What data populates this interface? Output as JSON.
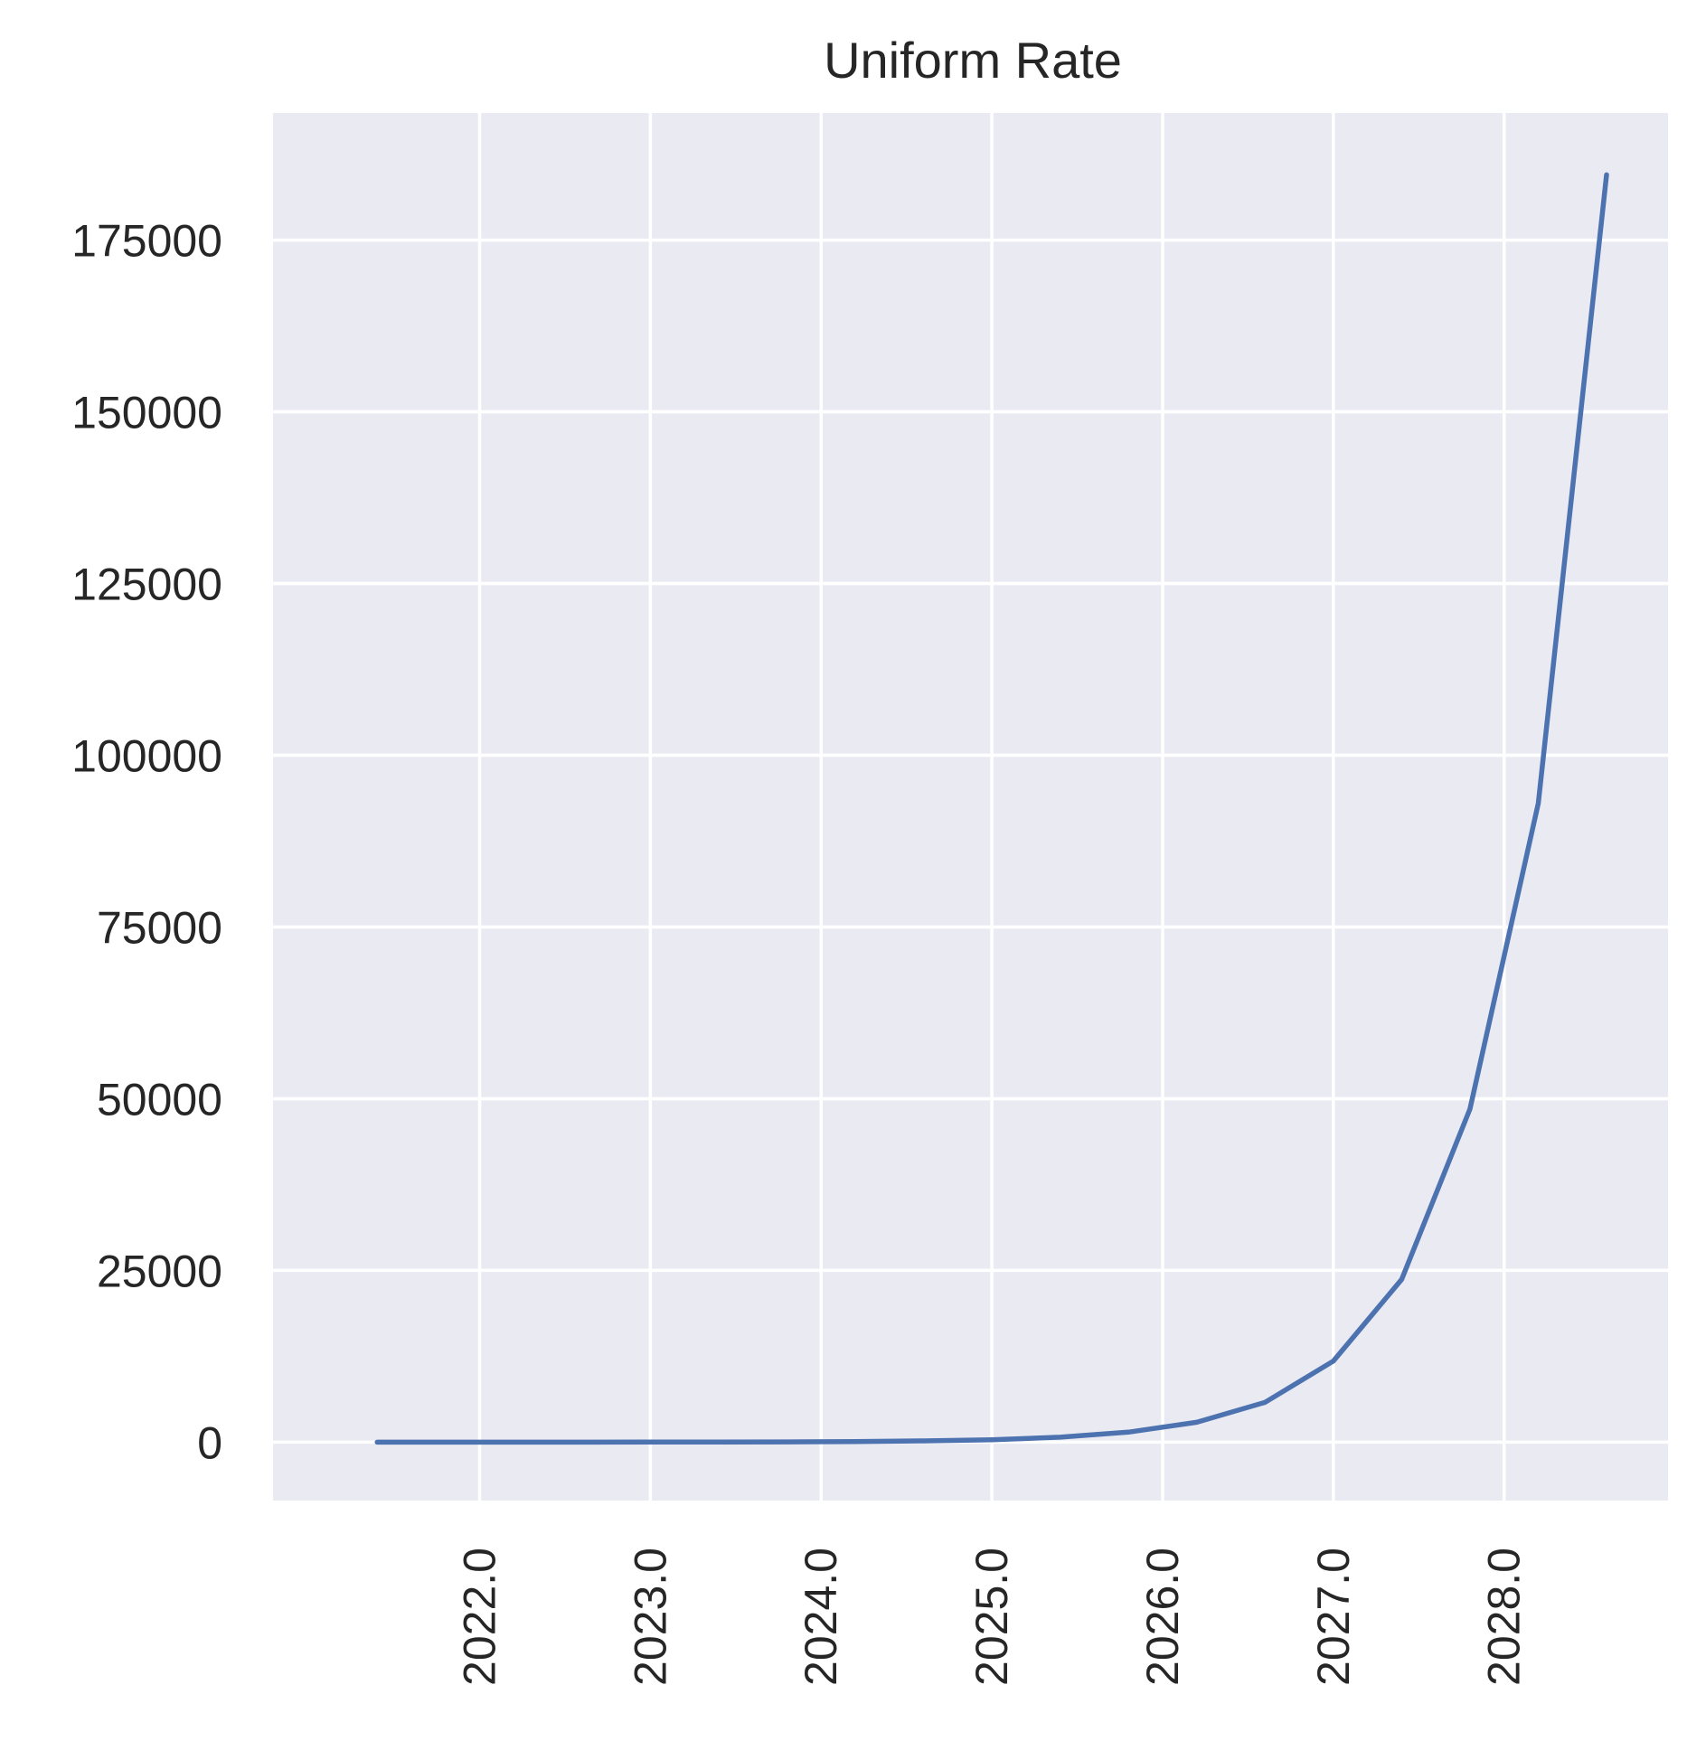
{
  "chart_data": {
    "type": "line",
    "title": "Uniform Rate",
    "xlabel": "",
    "ylabel": "",
    "x": [
      2021.4,
      2021.8,
      2022.2,
      2022.6,
      2023.0,
      2023.4,
      2023.8,
      2024.2,
      2024.6,
      2025.0,
      2025.4,
      2025.8,
      2026.2,
      2026.6,
      2027.0,
      2027.4,
      2027.8,
      2028.2,
      2028.6
    ],
    "series": [
      {
        "name": "",
        "color": "#4c72b0",
        "values": [
          1,
          2,
          3,
          6,
          11,
          23,
          45,
          90,
          180,
          360,
          730,
          1460,
          2900,
          5800,
          11800,
          23700,
          48500,
          93000,
          184500
        ]
      }
    ],
    "xticks": [
      2022.0,
      2023.0,
      2024.0,
      2025.0,
      2026.0,
      2027.0,
      2028.0
    ],
    "xtick_labels": [
      "2022.0",
      "2023.0",
      "2024.0",
      "2025.0",
      "2026.0",
      "2027.0",
      "2028.0"
    ],
    "yticks": [
      0,
      25000,
      50000,
      75000,
      100000,
      125000,
      150000,
      175000
    ],
    "ytick_labels": [
      "0",
      "25000",
      "50000",
      "75000",
      "100000",
      "125000",
      "150000",
      "175000"
    ],
    "xlim": [
      2020.79,
      2028.96
    ],
    "ylim": [
      -8500,
      193500
    ],
    "grid": true,
    "legend": "none",
    "colors": {
      "plot_background": "#eaeaf2",
      "grid": "#ffffff",
      "line": "#4c72b0",
      "text": "#262626"
    }
  }
}
